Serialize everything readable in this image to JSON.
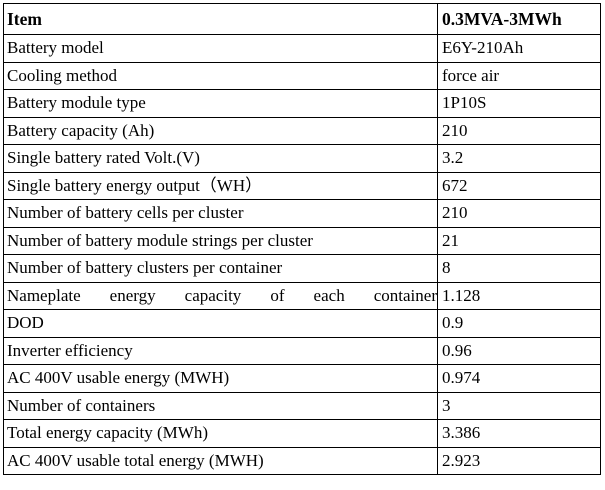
{
  "table": {
    "header": {
      "item": "Item",
      "value": "0.3MVA-3MWh"
    },
    "rows": [
      {
        "label": "Battery model",
        "value": "E6Y-210Ah"
      },
      {
        "label": "Cooling method",
        "value": "force air"
      },
      {
        "label": "Battery module type",
        "value": "1P10S"
      },
      {
        "label": "Battery capacity (Ah)",
        "value": "210"
      },
      {
        "label": "Single battery rated Volt.(V)",
        "value": "3.2"
      },
      {
        "label": "Single battery energy output（WH）",
        "value": "672"
      },
      {
        "label": "Number of battery cells per cluster",
        "value": "210"
      },
      {
        "label": "Number of battery module strings per cluster",
        "value": "21"
      },
      {
        "label": "Number of battery clusters per container",
        "value": "8"
      },
      {
        "label": "Nameplate energy capacity of each container",
        "value": "1.128"
      },
      {
        "label": "DOD",
        "value": "0.9"
      },
      {
        "label": "Inverter efficiency",
        "value": "0.96"
      },
      {
        "label": "AC 400V usable energy (MWH)",
        "value": "0.974"
      },
      {
        "label": "Number of containers",
        "value": "3"
      },
      {
        "label": "Total energy capacity (MWh)",
        "value": "3.386"
      },
      {
        "label": "AC 400V usable total energy (MWH)",
        "value": "2.923"
      }
    ]
  }
}
